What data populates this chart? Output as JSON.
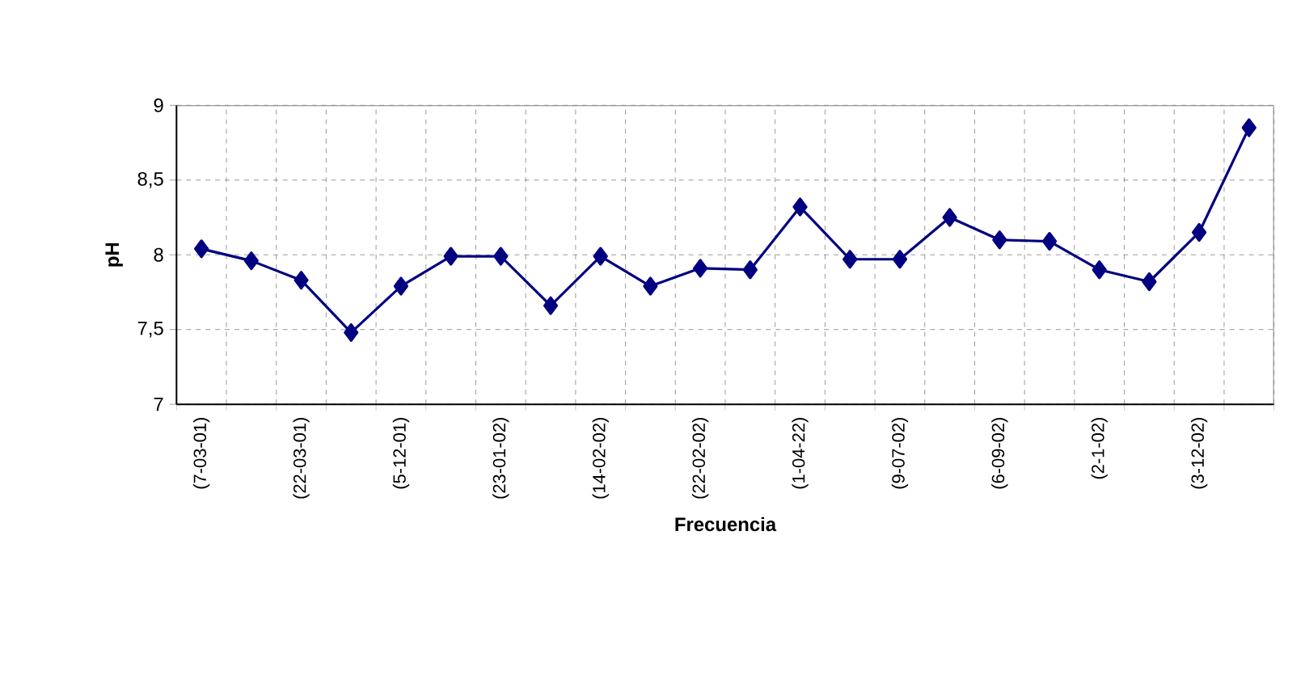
{
  "chart_data": {
    "type": "line",
    "xlabel": "Frecuencia",
    "ylabel": "pH",
    "categories": [
      "(7-03-01)",
      null,
      "(22-03-01)",
      null,
      "(5-12-01)",
      null,
      "(23-01-02)",
      null,
      "(14-02-02)",
      null,
      "(22-02-02)",
      null,
      "(1-04-22)",
      null,
      "(9-07-02)",
      null,
      "(6-09-02)",
      null,
      "(2-1-02)",
      null,
      "(3-12-02)",
      null
    ],
    "values": [
      8.04,
      7.96,
      7.83,
      7.48,
      7.79,
      7.99,
      7.99,
      7.66,
      7.99,
      7.79,
      7.91,
      7.9,
      8.32,
      7.97,
      7.97,
      8.25,
      8.1,
      8.09,
      7.9,
      7.82,
      8.15,
      8.85
    ],
    "color": "#000080",
    "marker": "diamond",
    "line_style": "solid",
    "ylim": [
      7,
      9
    ],
    "yticks": [
      7,
      {
        "value": 7.5,
        "label": "7,5"
      },
      8,
      {
        "value": 8.5,
        "label": "8,5"
      },
      9
    ],
    "grid": true
  }
}
